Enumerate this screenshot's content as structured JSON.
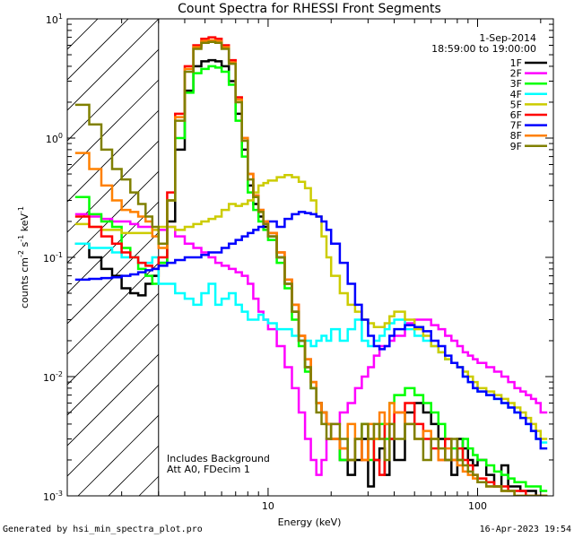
{
  "chart_data": {
    "type": "line",
    "title": "Count Spectra for RHESSI Front Segments",
    "xlabel": "Energy (keV)",
    "ylabel_parts": [
      "counts cm",
      "-2",
      " s",
      "-1",
      " keV",
      "-1"
    ],
    "xscale": "log",
    "yscale": "log",
    "xlim": [
      1.1,
      230
    ],
    "ylim": [
      0.001,
      10
    ],
    "x_ticks": [
      {
        "v": 10,
        "label": "10"
      },
      {
        "v": 100,
        "label": "100"
      }
    ],
    "y_ticks": [
      {
        "v": 0.001,
        "base": "10",
        "exp": "-3"
      },
      {
        "v": 0.01,
        "base": "10",
        "exp": "-2"
      },
      {
        "v": 0.1,
        "base": "10",
        "exp": "-1"
      },
      {
        "v": 1,
        "base": "10",
        "exp": "0"
      },
      {
        "v": 10,
        "base": "10",
        "exp": "1"
      }
    ],
    "date": "1-Sep-2014",
    "time_range": "18:59:00 to 19:00:00",
    "annotations": [
      "Includes Background",
      "Att A0, FDecim 1"
    ],
    "hatched_region_max_energy": 3,
    "energy_bins": [
      1.2,
      1.4,
      1.6,
      1.8,
      2.0,
      2.2,
      2.4,
      2.6,
      2.8,
      3.0,
      3.3,
      3.6,
      4.0,
      4.4,
      4.8,
      5.2,
      5.6,
      6.0,
      6.5,
      7.0,
      7.5,
      8.0,
      8.5,
      9.0,
      9.5,
      10,
      11,
      12,
      13,
      14,
      15,
      16,
      17,
      18,
      19,
      20,
      22,
      24,
      26,
      28,
      30,
      32,
      34,
      36,
      38,
      40,
      45,
      50,
      55,
      60,
      65,
      70,
      75,
      80,
      85,
      90,
      95,
      100,
      110,
      120,
      130,
      140,
      150,
      160,
      170,
      180,
      190,
      200,
      215,
      230
    ],
    "series": [
      {
        "name": "1F",
        "color": "#000000",
        "values": [
          0.13,
          0.1,
          0.08,
          0.07,
          0.055,
          0.05,
          0.048,
          0.06,
          0.07,
          0.09,
          0.2,
          0.8,
          2.5,
          4.0,
          4.4,
          4.5,
          4.4,
          4.0,
          3.0,
          1.6,
          0.8,
          0.4,
          0.28,
          0.22,
          0.18,
          0.15,
          0.1,
          0.06,
          0.035,
          0.02,
          0.012,
          0.008,
          0.006,
          0.005,
          0.004,
          0.003,
          0.002,
          0.0015,
          0.002,
          0.003,
          0.0012,
          0.002,
          0.0025,
          0.0015,
          0.003,
          0.002,
          0.005,
          0.006,
          0.005,
          0.004,
          0.003,
          0.002,
          0.0015,
          0.003,
          0.0025,
          0.002,
          0.0018,
          0.002,
          0.0015,
          0.0012,
          0.0018,
          0.0012,
          0.0012,
          0.0011,
          0.0011,
          0.0011,
          0.001,
          0.001
        ]
      },
      {
        "name": "2F",
        "color": "#ff00ff",
        "values": [
          0.23,
          0.22,
          0.21,
          0.2,
          0.2,
          0.19,
          0.18,
          0.18,
          0.17,
          0.17,
          0.18,
          0.15,
          0.13,
          0.12,
          0.11,
          0.1,
          0.09,
          0.085,
          0.08,
          0.075,
          0.07,
          0.06,
          0.045,
          0.035,
          0.03,
          0.025,
          0.018,
          0.012,
          0.008,
          0.005,
          0.003,
          0.002,
          0.0015,
          0.002,
          0.003,
          0.004,
          0.005,
          0.006,
          0.008,
          0.01,
          0.012,
          0.015,
          0.018,
          0.018,
          0.02,
          0.022,
          0.028,
          0.03,
          0.03,
          0.027,
          0.025,
          0.022,
          0.02,
          0.018,
          0.016,
          0.015,
          0.014,
          0.013,
          0.012,
          0.011,
          0.01,
          0.009,
          0.008,
          0.0075,
          0.007,
          0.0065,
          0.006,
          0.005
        ]
      },
      {
        "name": "3F",
        "color": "#00ff00",
        "values": [
          0.32,
          0.23,
          0.2,
          0.18,
          0.12,
          0.1,
          0.08,
          0.07,
          0.06,
          0.09,
          0.3,
          1.0,
          2.4,
          3.5,
          3.8,
          4.0,
          3.9,
          3.6,
          2.8,
          1.4,
          0.7,
          0.35,
          0.25,
          0.2,
          0.17,
          0.14,
          0.09,
          0.055,
          0.03,
          0.018,
          0.011,
          0.008,
          0.006,
          0.005,
          0.004,
          0.003,
          0.002,
          0.002,
          0.003,
          0.004,
          0.002,
          0.003,
          0.004,
          0.003,
          0.006,
          0.007,
          0.008,
          0.007,
          0.006,
          0.005,
          0.004,
          0.003,
          0.0025,
          0.002,
          0.003,
          0.0025,
          0.0022,
          0.002,
          0.0018,
          0.0016,
          0.0015,
          0.0014,
          0.0013,
          0.0013,
          0.0012,
          0.0012,
          0.0012,
          0.0011
        ]
      },
      {
        "name": "4F",
        "color": "#00ffff",
        "values": [
          0.13,
          0.12,
          0.12,
          0.11,
          0.1,
          0.1,
          0.09,
          0.09,
          0.1,
          0.06,
          0.06,
          0.05,
          0.045,
          0.04,
          0.05,
          0.06,
          0.04,
          0.045,
          0.05,
          0.04,
          0.035,
          0.03,
          0.03,
          0.033,
          0.03,
          0.028,
          0.025,
          0.025,
          0.022,
          0.02,
          0.02,
          0.018,
          0.02,
          0.022,
          0.02,
          0.025,
          0.02,
          0.025,
          0.03,
          0.02,
          0.018,
          0.02,
          0.022,
          0.025,
          0.028,
          0.03,
          0.025,
          0.022,
          0.02,
          0.018,
          0.016,
          0.014,
          0.013,
          0.012,
          0.01,
          0.009,
          0.008,
          0.0075,
          0.007,
          0.0065,
          0.006,
          0.0055,
          0.005,
          0.0045,
          0.004,
          0.0035,
          0.003,
          0.0028
        ]
      },
      {
        "name": "5F",
        "color": "#cccc00",
        "values": [
          0.19,
          0.18,
          0.17,
          0.17,
          0.16,
          0.16,
          0.16,
          0.16,
          0.17,
          0.18,
          0.18,
          0.17,
          0.18,
          0.19,
          0.2,
          0.21,
          0.22,
          0.25,
          0.28,
          0.27,
          0.28,
          0.3,
          0.35,
          0.4,
          0.42,
          0.44,
          0.47,
          0.49,
          0.47,
          0.43,
          0.38,
          0.3,
          0.22,
          0.15,
          0.1,
          0.07,
          0.05,
          0.04,
          0.035,
          0.03,
          0.028,
          0.026,
          0.026,
          0.028,
          0.032,
          0.035,
          0.03,
          0.025,
          0.022,
          0.018,
          0.016,
          0.014,
          0.013,
          0.012,
          0.011,
          0.01,
          0.009,
          0.008,
          0.0075,
          0.007,
          0.0065,
          0.006,
          0.0055,
          0.005,
          0.0045,
          0.004,
          0.0035,
          0.003
        ]
      },
      {
        "name": "6F",
        "color": "#ff0000",
        "values": [
          0.22,
          0.18,
          0.15,
          0.13,
          0.11,
          0.1,
          0.09,
          0.085,
          0.08,
          0.1,
          0.35,
          1.6,
          4.0,
          6.0,
          6.8,
          7.0,
          6.8,
          6.0,
          4.5,
          2.2,
          1.0,
          0.5,
          0.33,
          0.25,
          0.2,
          0.16,
          0.11,
          0.065,
          0.04,
          0.022,
          0.014,
          0.009,
          0.006,
          0.005,
          0.004,
          0.003,
          0.0025,
          0.002,
          0.003,
          0.002,
          0.003,
          0.002,
          0.0015,
          0.004,
          0.003,
          0.005,
          0.006,
          0.004,
          0.003,
          0.0025,
          0.002,
          0.003,
          0.002,
          0.0025,
          0.002,
          0.0018,
          0.0015,
          0.0014,
          0.0013,
          0.0012,
          0.0012,
          0.0011,
          0.0011,
          0.0011,
          0.001,
          0.001,
          0.001,
          0.001
        ]
      },
      {
        "name": "7F",
        "color": "#0000ff",
        "values": [
          0.065,
          0.066,
          0.067,
          0.068,
          0.07,
          0.072,
          0.075,
          0.078,
          0.08,
          0.085,
          0.09,
          0.095,
          0.1,
          0.1,
          0.105,
          0.11,
          0.11,
          0.12,
          0.13,
          0.14,
          0.15,
          0.16,
          0.17,
          0.18,
          0.19,
          0.2,
          0.18,
          0.21,
          0.23,
          0.24,
          0.235,
          0.23,
          0.22,
          0.2,
          0.17,
          0.13,
          0.09,
          0.06,
          0.04,
          0.03,
          0.022,
          0.018,
          0.017,
          0.018,
          0.022,
          0.025,
          0.027,
          0.026,
          0.024,
          0.02,
          0.018,
          0.015,
          0.013,
          0.012,
          0.01,
          0.009,
          0.008,
          0.0075,
          0.007,
          0.0065,
          0.006,
          0.0055,
          0.005,
          0.0045,
          0.004,
          0.0035,
          0.003,
          0.0025
        ]
      },
      {
        "name": "8F",
        "color": "#ff8000",
        "values": [
          0.75,
          0.55,
          0.4,
          0.3,
          0.25,
          0.24,
          0.22,
          0.2,
          0.15,
          0.12,
          0.3,
          1.5,
          3.8,
          5.8,
          6.5,
          6.6,
          6.5,
          5.8,
          4.3,
          2.1,
          1.0,
          0.5,
          0.33,
          0.25,
          0.2,
          0.16,
          0.11,
          0.065,
          0.04,
          0.022,
          0.014,
          0.009,
          0.006,
          0.005,
          0.004,
          0.003,
          0.0025,
          0.004,
          0.003,
          0.002,
          0.004,
          0.003,
          0.005,
          0.004,
          0.006,
          0.005,
          0.004,
          0.003,
          0.0035,
          0.003,
          0.002,
          0.0025,
          0.002,
          0.0018,
          0.0016,
          0.0015,
          0.0014,
          0.0013,
          0.0012,
          0.0012,
          0.0011,
          0.0011,
          0.001,
          0.001,
          0.001,
          0.001,
          0.001,
          0.001
        ]
      },
      {
        "name": "9F",
        "color": "#808000",
        "values": [
          1.9,
          1.3,
          0.8,
          0.55,
          0.45,
          0.35,
          0.28,
          0.22,
          0.18,
          0.13,
          0.3,
          1.4,
          3.6,
          5.6,
          6.3,
          6.4,
          6.3,
          5.6,
          4.2,
          2.0,
          0.95,
          0.45,
          0.32,
          0.24,
          0.19,
          0.15,
          0.1,
          0.06,
          0.035,
          0.02,
          0.012,
          0.008,
          0.005,
          0.004,
          0.003,
          0.004,
          0.003,
          0.002,
          0.003,
          0.004,
          0.003,
          0.004,
          0.003,
          0.002,
          0.004,
          0.003,
          0.004,
          0.003,
          0.002,
          0.003,
          0.0025,
          0.002,
          0.003,
          0.002,
          0.0018,
          0.0016,
          0.0015,
          0.0013,
          0.0012,
          0.0012,
          0.0011,
          0.0011,
          0.001,
          0.001,
          0.001,
          0.001,
          0.001,
          0.001
        ]
      }
    ]
  },
  "footer": {
    "left": "Generated by hsi_min_spectra_plot.pro",
    "right": "16-Apr-2023 19:54"
  }
}
